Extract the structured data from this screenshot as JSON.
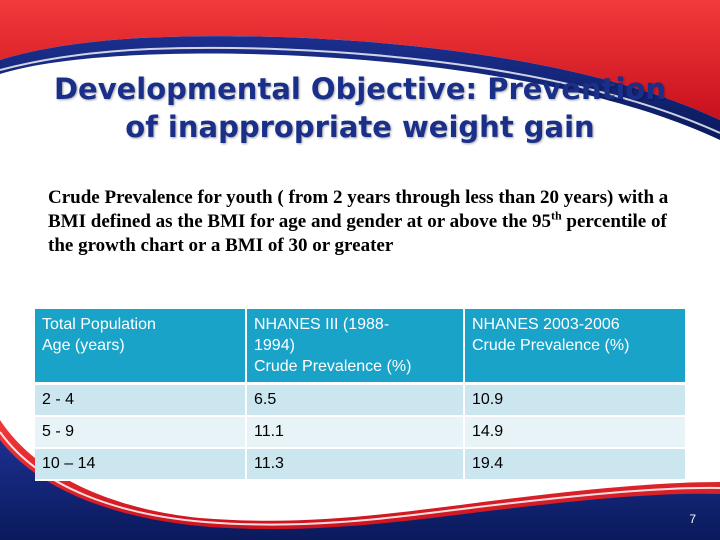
{
  "slide": {
    "title_lines": [
      "Developmental Objective: Prevention",
      "of inappropriate weight gain"
    ],
    "description": {
      "part1": "Crude Prevalence for youth ( from 2 years through less than 20 years) with a BMI defined as the BMI for age and gender at or above the 95",
      "superscript": "th",
      "part2": " percentile of the growth chart or a BMI of 30 or greater"
    },
    "page_number": "7"
  },
  "table": {
    "headers": [
      [
        "Total Population",
        "Age (years)"
      ],
      [
        "NHANES III (1988-",
        "1994)",
        "Crude Prevalence (%)"
      ],
      [
        "NHANES 2003-2006",
        "Crude Prevalence (%)"
      ]
    ],
    "rows": [
      [
        "2 - 4",
        "6.5",
        "10.9"
      ],
      [
        "5 - 9",
        "11.1",
        "14.9"
      ],
      [
        "10 – 14",
        "11.3",
        "19.4"
      ]
    ]
  },
  "colors": {
    "title": "#1a2f8a",
    "header_bg": "#1aa3c8",
    "row_odd": "#cce6ef",
    "row_even": "#e8f3f7",
    "frame_red": "#e41e2b",
    "frame_navy": "#0d1f6b"
  }
}
